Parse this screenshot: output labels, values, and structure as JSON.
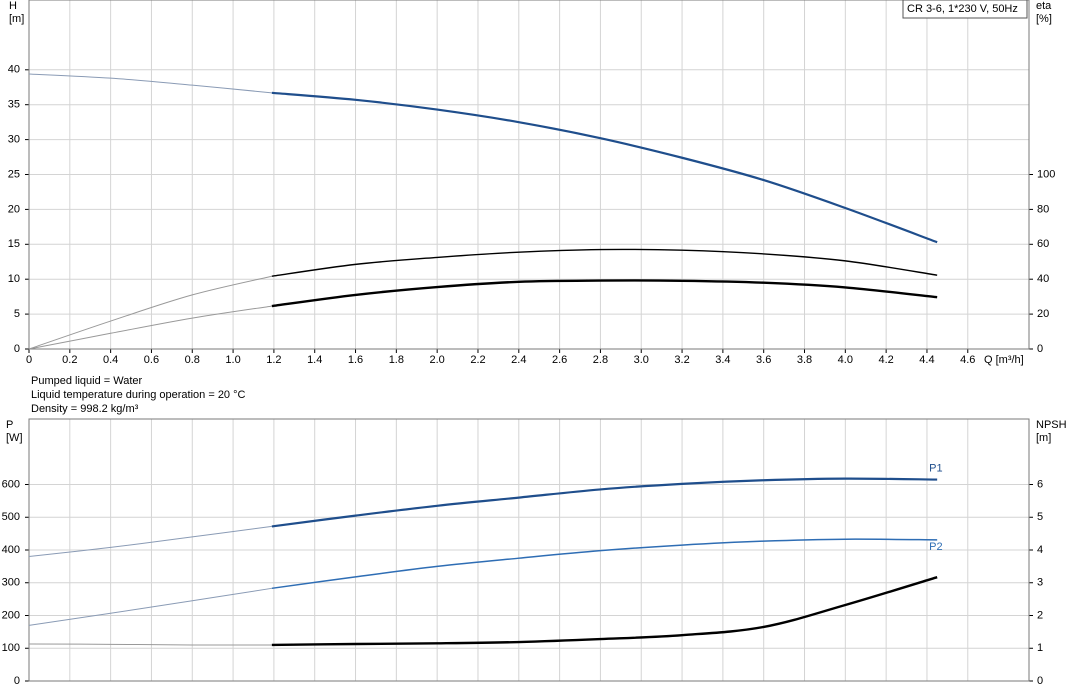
{
  "chart_data": [
    {
      "type": "line",
      "title": "CR 3-6, 1*230 V, 50Hz",
      "xlabel": "Q [m³/h]",
      "ylabel": [
        "H",
        "[m]"
      ],
      "y2label": [
        "eta",
        "[%]"
      ],
      "annotations": [
        "Pumped liquid = Water",
        "Liquid temperature during operation = 20 °C",
        "Density = 998.2 kg/m³"
      ],
      "xlim": [
        0,
        4.9
      ],
      "ylim": [
        0,
        50
      ],
      "y2lim": [
        0,
        200
      ],
      "grid": true,
      "xticks": [
        0,
        0.2,
        0.4,
        0.6,
        0.8,
        {
          "value": 1,
          "label": "1.0"
        },
        1.2,
        1.4,
        1.6,
        1.8,
        {
          "value": 2,
          "label": "2.0"
        },
        2.2,
        2.4,
        2.6,
        2.8,
        {
          "value": 3,
          "label": "3.0"
        },
        3.2,
        3.4,
        3.6,
        3.8,
        {
          "value": 4,
          "label": "4.0"
        },
        4.2,
        4.4,
        4.6
      ],
      "yticks": [
        0,
        5,
        10,
        15,
        20,
        25,
        30,
        35,
        40
      ],
      "y2ticks": [
        0,
        20,
        40,
        60,
        80,
        100
      ],
      "series": [
        {
          "color": "#8a9bb5",
          "width": 1,
          "x": [
            0,
            0.4,
            0.8,
            1.19
          ],
          "values": [
            39.4,
            38.8,
            37.8,
            36.7
          ]
        },
        {
          "color": "#1f4e8c",
          "width": 2.2,
          "x": [
            1.19,
            1.6,
            2.0,
            2.4,
            2.8,
            3.2,
            3.6,
            4.0,
            4.45
          ],
          "values": [
            36.7,
            35.7,
            34.3,
            32.5,
            30.2,
            27.4,
            24.2,
            20.2,
            15.3
          ]
        },
        {
          "color": "#999999",
          "width": 1,
          "axis": "y2",
          "x": [
            0,
            0.4,
            0.8,
            1.19
          ],
          "values": [
            0,
            16,
            31,
            41.7
          ]
        },
        {
          "color": "#000000",
          "width": 1.4,
          "axis": "y2",
          "x": [
            1.19,
            1.6,
            2.0,
            2.4,
            2.8,
            3.2,
            3.6,
            4.0,
            4.45
          ],
          "values": [
            41.7,
            48.5,
            52.5,
            55.5,
            57,
            56.6,
            54.5,
            50.5,
            42.3
          ]
        },
        {
          "color": "#999999",
          "width": 1,
          "axis": "y2",
          "x": [
            0,
            0.4,
            0.8,
            1.19
          ],
          "values": [
            0,
            9,
            17.7,
            24.6
          ]
        },
        {
          "color": "#000000",
          "width": 2.4,
          "axis": "y2",
          "x": [
            1.19,
            1.6,
            2.0,
            2.4,
            2.8,
            3.2,
            3.6,
            4.0,
            4.45
          ],
          "values": [
            24.6,
            31,
            35.5,
            38.5,
            39.2,
            39.1,
            38,
            35.3,
            29.7
          ]
        }
      ]
    },
    {
      "type": "line",
      "ylabel": [
        "P",
        "[W]"
      ],
      "y2label": [
        "NPSH",
        "[m]"
      ],
      "xlim": [
        0,
        4.9
      ],
      "ylim": [
        0,
        800
      ],
      "y2lim": [
        0,
        8
      ],
      "grid": true,
      "yticks": [
        0,
        100,
        200,
        300,
        400,
        500,
        600
      ],
      "y2ticks": [
        0,
        1,
        2,
        3,
        4,
        5,
        6
      ],
      "series": [
        {
          "color": "#8a9bb5",
          "width": 1,
          "x": [
            0,
            0.4,
            0.8,
            1.19
          ],
          "values": [
            380,
            408,
            440,
            472
          ]
        },
        {
          "name": "P1",
          "color": "#1f4e8c",
          "width": 2.2,
          "x": [
            1.19,
            1.6,
            2.0,
            2.4,
            2.8,
            3.2,
            3.6,
            4.0,
            4.45
          ],
          "values": [
            472,
            505,
            535,
            560,
            585,
            602,
            613,
            618,
            615
          ]
        },
        {
          "color": "#8a9bb5",
          "width": 1,
          "x": [
            0,
            0.4,
            0.8,
            1.19
          ],
          "values": [
            170,
            207,
            245,
            283
          ]
        },
        {
          "name": "P2",
          "color": "#2e6db4",
          "width": 1.5,
          "x": [
            1.19,
            1.6,
            2.0,
            2.4,
            2.8,
            3.2,
            3.6,
            4.0,
            4.45
          ],
          "values": [
            283,
            318,
            350,
            375,
            398,
            415,
            427,
            433,
            431
          ]
        },
        {
          "color": "#999999",
          "width": 1,
          "axis": "y2",
          "x": [
            0,
            0.4,
            0.8,
            1.19
          ],
          "values": [
            1.13,
            1.12,
            1.1,
            1.1
          ]
        },
        {
          "color": "#000000",
          "width": 2.4,
          "axis": "y2",
          "x": [
            1.19,
            1.6,
            2.0,
            2.4,
            2.8,
            3.2,
            3.6,
            4.0,
            4.45
          ],
          "values": [
            1.1,
            1.13,
            1.15,
            1.19,
            1.28,
            1.4,
            1.65,
            2.32,
            3.17
          ]
        }
      ]
    }
  ]
}
